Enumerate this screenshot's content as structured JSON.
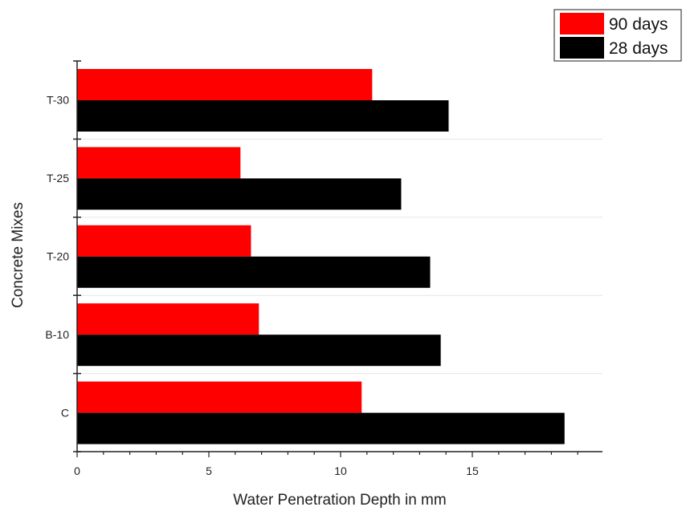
{
  "chart_data": {
    "type": "bar",
    "orientation": "horizontal",
    "categories": [
      "C",
      "B-10",
      "T-20",
      "T-25",
      "T-30"
    ],
    "series": [
      {
        "name": "90 days",
        "color": "#ff0000",
        "values": [
          10.8,
          6.9,
          6.6,
          6.2,
          11.2
        ]
      },
      {
        "name": "28 days",
        "color": "#000000",
        "values": [
          18.5,
          13.8,
          13.4,
          12.3,
          14.1
        ]
      }
    ],
    "legend_order": [
      "90 days",
      "28 days"
    ],
    "legend_position": "top-right",
    "xlabel": "Water Penetration Depth  in mm",
    "ylabel": "Concrete Mixes",
    "x_ticks": [
      0,
      5,
      10,
      15
    ],
    "xlim": [
      0,
      20
    ],
    "grid": false
  }
}
